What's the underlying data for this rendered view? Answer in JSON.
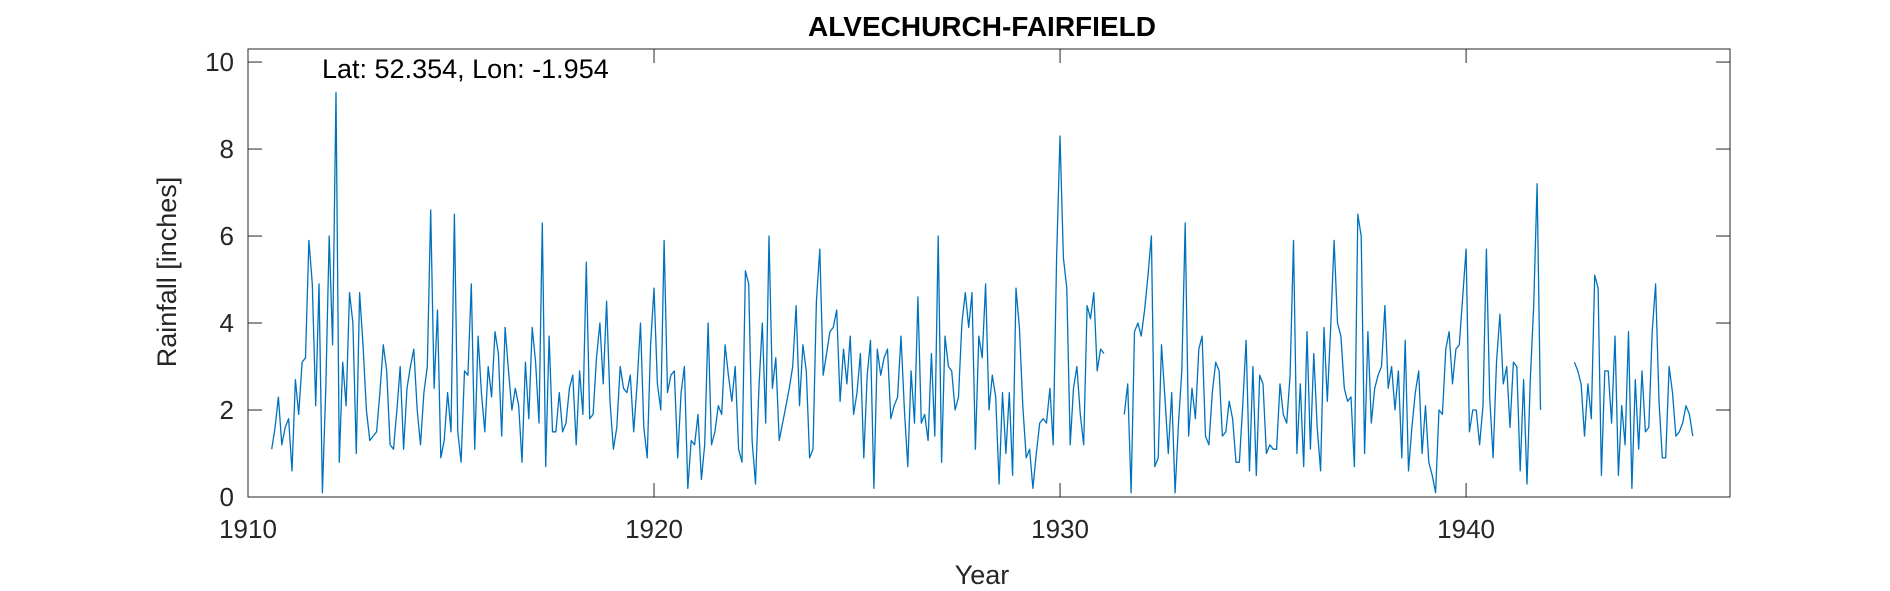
{
  "chart_data": {
    "type": "line",
    "title": "ALVECHURCH-FAIRFIELD",
    "annotation": "Lat: 52.354, Lon: -1.954",
    "xlabel": "Year",
    "ylabel": "Rainfall [inches]",
    "xlim": [
      1910,
      1946.5
    ],
    "ylim": [
      0,
      10.3
    ],
    "xticks": [
      1910,
      1920,
      1930,
      1940
    ],
    "yticks": [
      0,
      2,
      4,
      6,
      8,
      10
    ],
    "grid": false,
    "line_color": "#0072BD",
    "series": [
      {
        "start_year": 1910.583,
        "step_years": 0.08333,
        "values": [
          1.1,
          1.6,
          2.3,
          1.2,
          1.6,
          1.8,
          0.6,
          2.7,
          1.9,
          3.1,
          3.2,
          5.9,
          4.9,
          2.1,
          4.9,
          0.1,
          2.5,
          6.0,
          3.5,
          9.3,
          0.8,
          3.1,
          2.1,
          4.7,
          4.0,
          1.0,
          4.7,
          3.5,
          2.0,
          1.3,
          1.4,
          1.5,
          2.4,
          3.5,
          2.9,
          1.2,
          1.1,
          2.0,
          3.0,
          1.1,
          2.5,
          3.0,
          3.4,
          2.0,
          1.2,
          2.4,
          3.0,
          6.6,
          2.5,
          4.3,
          0.9,
          1.3,
          2.4,
          1.5,
          6.5,
          1.5,
          0.8,
          2.9,
          2.8,
          4.9,
          1.1,
          3.7,
          2.4,
          1.5,
          3.0,
          2.3,
          3.8,
          3.3,
          1.4,
          3.9,
          2.9,
          2.0,
          2.5,
          2.1,
          0.8,
          3.1,
          1.8,
          3.9,
          3.1,
          1.7,
          6.3,
          0.7,
          3.7,
          1.5,
          1.5,
          2.4,
          1.5,
          1.7,
          2.5,
          2.8,
          1.2,
          2.9,
          1.9,
          5.4,
          1.8,
          1.9,
          3.2,
          4.0,
          2.6,
          4.5,
          2.2,
          1.1,
          1.6,
          3.0,
          2.5,
          2.4,
          2.8,
          1.5,
          2.6,
          4.0,
          1.6,
          0.9,
          3.5,
          4.8,
          2.6,
          2.0,
          5.9,
          2.4,
          2.8,
          2.9,
          0.9,
          2.4,
          3.0,
          0.2,
          1.3,
          1.2,
          1.9,
          0.4,
          1.2,
          4.0,
          1.2,
          1.5,
          2.1,
          1.9,
          3.5,
          2.8,
          2.2,
          3.0,
          1.1,
          0.8,
          5.2,
          4.9,
          1.3,
          0.3,
          2.5,
          4.0,
          1.7,
          6.0,
          2.5,
          3.2,
          1.3,
          1.7,
          2.1,
          2.5,
          3.0,
          4.4,
          2.1,
          3.5,
          2.9,
          0.9,
          1.1,
          4.5,
          5.7,
          2.8,
          3.3,
          3.8,
          3.9,
          4.3,
          2.2,
          3.4,
          2.6,
          3.7,
          1.9,
          2.4,
          3.3,
          0.9,
          2.8,
          3.6,
          0.2,
          3.4,
          2.8,
          3.2,
          3.4,
          1.8,
          2.1,
          2.3,
          3.7,
          2.0,
          0.7,
          2.9,
          1.7,
          4.6,
          1.7,
          1.9,
          1.3,
          3.3,
          1.4,
          6.0,
          0.8,
          3.7,
          3.0,
          2.9,
          2.0,
          2.3,
          4.0,
          4.7,
          3.9,
          4.7,
          1.1,
          3.7,
          3.2,
          4.9,
          2.0,
          2.8,
          2.3,
          0.3,
          2.4,
          1.0,
          2.4,
          0.5,
          4.8,
          3.9,
          2.1,
          0.9,
          1.1,
          0.2,
          1.0,
          1.7,
          1.8,
          1.7,
          2.5,
          1.2,
          5.5,
          8.3,
          5.5,
          4.8,
          1.2,
          2.5,
          3.0,
          1.9,
          1.2,
          4.4,
          4.1,
          4.7,
          2.9,
          3.4,
          3.3
        ]
      },
      {
        "start_year": 1931.583,
        "step_years": 0.08333,
        "values": [
          1.9,
          2.6,
          0.1,
          3.8,
          4.0,
          3.7,
          4.3,
          5.1,
          6.0,
          0.7,
          0.9,
          3.5,
          2.3,
          1.0,
          2.4,
          0.1,
          1.7,
          2.9,
          6.3,
          1.4,
          2.5,
          1.8,
          3.4,
          3.7,
          1.4,
          1.2,
          2.4,
          3.1,
          2.9,
          1.4,
          1.5,
          2.2,
          1.8,
          0.8,
          0.8,
          2.1,
          3.6,
          0.6,
          3.0,
          0.5,
          2.8,
          2.6,
          1.0,
          1.2,
          1.1,
          1.1,
          2.6,
          1.9,
          1.7,
          2.8,
          5.9,
          1.0,
          2.6,
          0.7,
          3.8,
          1.1,
          3.3,
          1.6,
          0.6,
          3.9,
          2.2,
          3.9,
          5.9,
          4.0,
          3.7,
          2.5,
          2.2,
          2.3,
          0.7,
          6.5,
          6.0,
          1.0,
          3.8,
          1.7,
          2.5,
          2.8,
          3.0,
          4.4,
          2.5,
          3.0,
          2.0,
          2.9,
          0.9,
          3.6,
          0.6,
          1.6,
          2.4,
          2.9,
          1.0,
          2.1,
          0.8,
          0.5,
          0.1,
          2.0,
          1.9,
          3.4,
          3.8,
          2.6,
          3.4,
          3.5,
          4.6,
          5.7,
          1.5,
          2.0,
          2.0,
          1.2,
          2.1,
          5.7,
          2.3,
          0.9,
          3.1,
          4.2,
          2.6,
          3.0,
          1.6,
          3.1,
          3.0,
          0.6,
          2.7,
          0.3,
          2.7,
          4.4,
          7.2,
          2.0
        ]
      },
      {
        "start_year": 1942.667,
        "step_years": 0.08333,
        "values": [
          3.1,
          2.9,
          2.6,
          1.4,
          2.6,
          1.8,
          5.1,
          4.8,
          0.5,
          2.9,
          2.9,
          1.7,
          3.7,
          0.5,
          2.1,
          1.2,
          3.8,
          0.2,
          2.7,
          1.1,
          2.9,
          1.5,
          1.6,
          3.8,
          4.9,
          2.2,
          0.9,
          0.9,
          3.0,
          2.4,
          1.4,
          1.5,
          1.7,
          2.1,
          1.9,
          1.4
        ]
      }
    ]
  }
}
